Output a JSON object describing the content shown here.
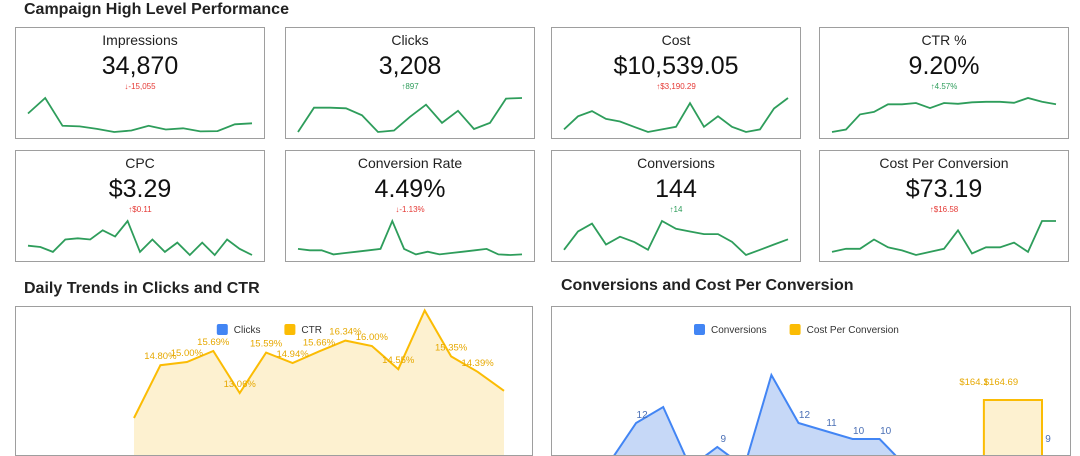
{
  "page": {
    "section_title": "Campaign High Level Performance",
    "left_chart_title": "Daily Trends in Clicks and CTR",
    "right_chart_title": "Conversions and Cost Per Conversion"
  },
  "colors": {
    "spark": "#2e9d5b",
    "down": "#e53935",
    "up": "#2e9d5b",
    "blue": "#4285f4",
    "blue_fill": "#c6d8f7",
    "yellow": "#fbbc04",
    "yellow_fill": "#fdf1d0"
  },
  "kpis": [
    {
      "label": "Impressions",
      "value": "34,870",
      "delta": "↓-15,055",
      "delta_class": "down",
      "spark": [
        9,
        14,
        5,
        4.8,
        4,
        3,
        3.5,
        5,
        3.8,
        4.2,
        3.2,
        3.3,
        5.5,
        5.8
      ]
    },
    {
      "label": "Clicks",
      "value": "3,208",
      "delta": "↑897",
      "delta_class": "up-good",
      "spark": [
        3,
        11,
        11,
        10.8,
        8.5,
        3,
        3.5,
        8,
        12,
        6,
        10,
        4,
        6,
        14,
        14.2
      ]
    },
    {
      "label": "Cost",
      "value": "$10,539.05",
      "delta": "↑$3,190.29",
      "delta_class": "up-bad",
      "spark": [
        4,
        9,
        11,
        8,
        7,
        5,
        3,
        4,
        5,
        14,
        5,
        9,
        5,
        3,
        4,
        12,
        16
      ]
    },
    {
      "label": "CTR %",
      "value": "9.20%",
      "delta": "↑4.57%",
      "delta_class": "up-good",
      "spark": [
        2,
        3,
        9,
        10,
        13,
        13,
        13.5,
        11.5,
        13.5,
        13.2,
        13.8,
        14,
        14,
        13.6,
        15.5,
        14,
        13
      ]
    },
    {
      "label": "CPC",
      "value": "$3.29",
      "delta": "↑$0.11",
      "delta_class": "up-bad",
      "spark": [
        6,
        5.8,
        5,
        7,
        7.2,
        7,
        8.5,
        7.5,
        10,
        5,
        7,
        5,
        6.5,
        4.5,
        6.5,
        4.5,
        7,
        5.5,
        4.5
      ]
    },
    {
      "label": "Conversion Rate",
      "value": "4.49%",
      "delta": "↓-1.13%",
      "delta_class": "down",
      "spark": [
        4,
        3.5,
        3.5,
        2,
        2.5,
        3,
        3.5,
        4,
        14,
        4,
        2,
        3,
        2,
        2.5,
        3,
        3.5,
        4,
        2,
        1.8,
        2
      ]
    },
    {
      "label": "Conversions",
      "value": "144",
      "delta": "↑14",
      "delta_class": "up-good",
      "spark": [
        4,
        11,
        14,
        6,
        9,
        7,
        4,
        15,
        12,
        11,
        10,
        10,
        7,
        2,
        4,
        6,
        8
      ]
    },
    {
      "label": "Cost Per Conversion",
      "value": "$73.19",
      "delta": "↑$16.58",
      "delta_class": "up-bad",
      "spark": [
        3,
        4,
        4,
        7,
        4.5,
        3.5,
        2,
        3,
        4,
        10,
        2.5,
        4.5,
        4.5,
        6,
        3,
        13,
        13
      ]
    }
  ],
  "chart_data": [
    {
      "type": "line",
      "title": "Daily Trends in Clicks and CTR",
      "legend": "top-center",
      "series": [
        {
          "name": "Clicks",
          "color": "#4285f4",
          "values": []
        },
        {
          "name": "CTR",
          "color": "#fbbc04",
          "values": [
            11.5,
            14.8,
            15.0,
            15.69,
            13.06,
            15.59,
            14.94,
            15.66,
            16.34,
            16.0,
            14.55,
            18.22,
            15.35,
            14.39,
            13.2
          ],
          "labels": [
            "",
            "14.80%",
            "15.00%",
            "15.69%",
            "13.06%",
            "15.59%",
            "14.94%",
            "15.66%",
            "16.34%",
            "16.00%",
            "14.55%",
            "18.22%",
            "15.35%",
            "14.39%",
            ""
          ]
        }
      ],
      "ylim": [
        0,
        20
      ]
    },
    {
      "type": "area",
      "title": "Conversions and Cost Per Conversion",
      "legend": "top-center",
      "series": [
        {
          "name": "Conversions",
          "color": "#4285f4",
          "values": [
            0,
            7,
            12,
            14,
            0,
            9,
            0,
            18,
            12,
            11,
            10,
            10,
            0,
            0,
            0,
            0,
            0,
            9
          ],
          "labels": [
            "",
            "",
            "12",
            "",
            "",
            "9",
            "",
            "",
            "12",
            "11",
            "10",
            "10",
            "",
            "",
            "",
            "",
            "",
            "9"
          ]
        },
        {
          "name": "Cost Per Conversion",
          "color": "#fbbc04",
          "values": [
            0,
            0,
            0,
            0,
            0,
            0,
            0,
            0,
            0,
            0,
            0,
            0,
            0,
            0,
            0,
            164.1,
            164.69,
            164.69
          ],
          "labels": [
            "",
            "",
            "",
            "",
            "",
            "",
            "",
            "",
            "",
            "",
            "",
            "",
            "",
            "",
            "",
            "$164.1",
            "$164.69",
            ""
          ]
        }
      ]
    }
  ]
}
